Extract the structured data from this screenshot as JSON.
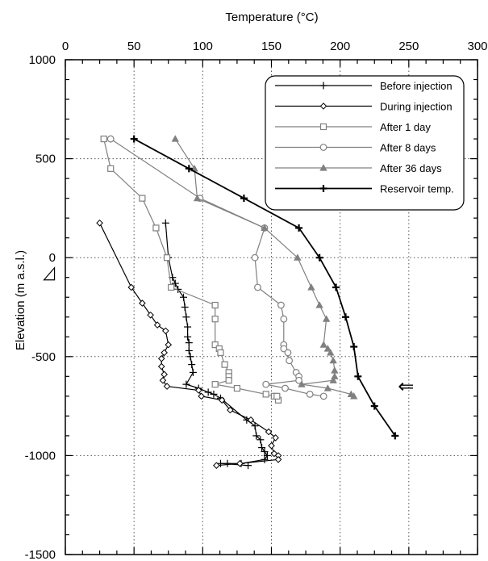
{
  "chart_data": {
    "type": "line",
    "xlabel": "Temperature (°C)",
    "ylabel": "Elevation (m a.s.l.)",
    "xlim": [
      0,
      300
    ],
    "ylim": [
      -1500,
      1000
    ],
    "xticks": [
      0,
      50,
      100,
      150,
      200,
      250,
      300
    ],
    "yticks": [
      1000,
      500,
      0,
      -500,
      -1000,
      -1500
    ],
    "xtick_labels": [
      "0",
      "50",
      "100",
      "150",
      "200",
      "250",
      "300"
    ],
    "ytick_labels": [
      "1000",
      "500",
      "0",
      "-500",
      "-1000",
      "-1500"
    ],
    "x_axis_position": "top",
    "grid": "dotted",
    "legend_position": "top-right",
    "series": [
      {
        "name": "Before injection",
        "color": "#000000",
        "marker": "plus",
        "points": [
          [
            73,
            175
          ],
          [
            75,
            0
          ],
          [
            78,
            -100
          ],
          [
            80,
            -130
          ],
          [
            82,
            -160
          ],
          [
            86,
            -200
          ],
          [
            87,
            -250
          ],
          [
            88,
            -300
          ],
          [
            89,
            -350
          ],
          [
            89,
            -400
          ],
          [
            90,
            -430
          ],
          [
            90,
            -470
          ],
          [
            91,
            -500
          ],
          [
            92,
            -540
          ],
          [
            93,
            -580
          ],
          [
            88,
            -640
          ],
          [
            97,
            -660
          ],
          [
            104,
            -680
          ],
          [
            108,
            -690
          ],
          [
            113,
            -710
          ],
          [
            132,
            -820
          ],
          [
            138,
            -850
          ],
          [
            139,
            -900
          ],
          [
            142,
            -920
          ],
          [
            143,
            -960
          ],
          [
            145,
            -980
          ],
          [
            147,
            -1000
          ],
          [
            145,
            -1020
          ],
          [
            128,
            -1040
          ],
          [
            118,
            -1040
          ],
          [
            113,
            -1040
          ],
          [
            133,
            -1050
          ]
        ]
      },
      {
        "name": "During injection",
        "color": "#000000",
        "marker": "diamond",
        "points": [
          [
            25,
            175
          ],
          [
            48,
            -150
          ],
          [
            56,
            -230
          ],
          [
            62,
            -290
          ],
          [
            67,
            -340
          ],
          [
            73,
            -370
          ],
          [
            75,
            -440
          ],
          [
            72,
            -480
          ],
          [
            70,
            -510
          ],
          [
            70,
            -550
          ],
          [
            72,
            -590
          ],
          [
            71,
            -620
          ],
          [
            74,
            -650
          ],
          [
            97,
            -670
          ],
          [
            99,
            -700
          ],
          [
            114,
            -720
          ],
          [
            120,
            -770
          ],
          [
            135,
            -820
          ],
          [
            148,
            -880
          ],
          [
            153,
            -910
          ],
          [
            150,
            -950
          ],
          [
            152,
            -990
          ],
          [
            155,
            -1000
          ],
          [
            155,
            -1020
          ],
          [
            127,
            -1040
          ],
          [
            110,
            -1050
          ]
        ]
      },
      {
        "name": "After 1 day",
        "color": "#808080",
        "marker": "square",
        "points": [
          [
            28,
            600
          ],
          [
            33,
            450
          ],
          [
            56,
            300
          ],
          [
            66,
            150
          ],
          [
            74,
            0
          ],
          [
            77,
            -150
          ],
          [
            109,
            -240
          ],
          [
            109,
            -310
          ],
          [
            109,
            -440
          ],
          [
            112,
            -460
          ],
          [
            113,
            -480
          ],
          [
            116,
            -540
          ],
          [
            119,
            -580
          ],
          [
            119,
            -600
          ],
          [
            119,
            -620
          ],
          [
            109,
            -640
          ],
          [
            125,
            -660
          ],
          [
            146,
            -690
          ],
          [
            152,
            -700
          ],
          [
            155,
            -720
          ],
          [
            154,
            -700
          ]
        ]
      },
      {
        "name": "After  8 days",
        "color": "#808080",
        "marker": "circle",
        "points": [
          [
            33,
            600
          ],
          [
            98,
            300
          ],
          [
            145,
            150
          ],
          [
            138,
            0
          ],
          [
            140,
            -150
          ],
          [
            157,
            -240
          ],
          [
            159,
            -310
          ],
          [
            159,
            -440
          ],
          [
            159,
            -460
          ],
          [
            162,
            -480
          ],
          [
            163,
            -520
          ],
          [
            168,
            -580
          ],
          [
            170,
            -600
          ],
          [
            170,
            -620
          ],
          [
            146,
            -640
          ],
          [
            160,
            -660
          ],
          [
            178,
            -690
          ],
          [
            188,
            -700
          ]
        ]
      },
      {
        "name": "After 36 days",
        "color": "#808080",
        "marker": "triangle",
        "points": [
          [
            80,
            600
          ],
          [
            94,
            450
          ],
          [
            96,
            300
          ],
          [
            145,
            150
          ],
          [
            169,
            0
          ],
          [
            179,
            -150
          ],
          [
            185,
            -240
          ],
          [
            190,
            -310
          ],
          [
            188,
            -440
          ],
          [
            191,
            -460
          ],
          [
            193,
            -480
          ],
          [
            195,
            -520
          ],
          [
            196,
            -570
          ],
          [
            196,
            -600
          ],
          [
            195,
            -620
          ],
          [
            172,
            -640
          ],
          [
            191,
            -660
          ],
          [
            208,
            -690
          ],
          [
            210,
            -700
          ]
        ]
      },
      {
        "name": "Reservoir temp.",
        "color": "#000000",
        "marker": "plus-bold",
        "points": [
          [
            50,
            600
          ],
          [
            90,
            450
          ],
          [
            130,
            300
          ],
          [
            170,
            150
          ],
          [
            185,
            0
          ],
          [
            197,
            -150
          ],
          [
            204,
            -300
          ],
          [
            210,
            -450
          ],
          [
            213,
            -600
          ],
          [
            225,
            -750
          ],
          [
            240,
            -900
          ]
        ]
      }
    ],
    "annotations": [
      {
        "type": "arrow",
        "symbol": "⇐",
        "x": 242,
        "y": -650
      },
      {
        "type": "triangle-marker",
        "x": -12,
        "y": -100
      }
    ]
  }
}
